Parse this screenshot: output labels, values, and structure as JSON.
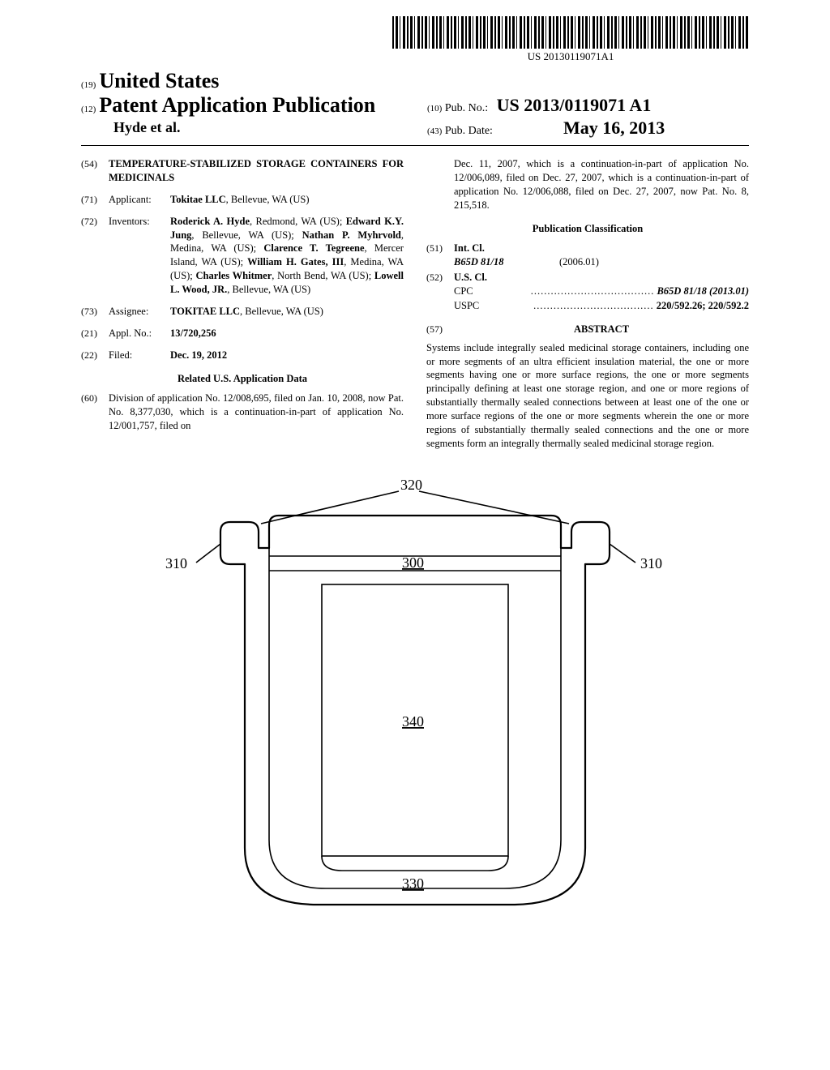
{
  "barcode_text": "US 20130119071A1",
  "header": {
    "code19": "(19)",
    "country": "United States",
    "code12": "(12)",
    "doc_type": "Patent Application Publication",
    "authors": "Hyde et al.",
    "code10": "(10)",
    "pub_no_label": "Pub. No.:",
    "pub_no": "US 2013/0119071 A1",
    "code43": "(43)",
    "pub_date_label": "Pub. Date:",
    "pub_date": "May 16, 2013"
  },
  "left": {
    "f54": {
      "code": "(54)",
      "title": "TEMPERATURE-STABILIZED STORAGE CONTAINERS FOR MEDICINALS"
    },
    "f71": {
      "code": "(71)",
      "label": "Applicant:",
      "body_bold": "Tokitae LLC",
      "body_rest": ", Bellevue, WA (US)"
    },
    "f72": {
      "code": "(72)",
      "label": "Inventors:",
      "body": "Roderick A. Hyde, Redmond, WA (US); Edward K.Y. Jung, Bellevue, WA (US); Nathan P. Myhrvold, Medina, WA (US); Clarence T. Tegreene, Mercer Island, WA (US); William H. Gates, III, Medina, WA (US); Charles Whitmer, North Bend, WA (US); Lowell L. Wood, JR., Bellevue, WA (US)",
      "bold_names": [
        "Roderick A. Hyde",
        "Edward K.Y. Jung",
        "Nathan P. Myhrvold",
        "Clarence T. Tegreene",
        "William H. Gates, III",
        "Charles Whitmer",
        "Lowell L. Wood, JR."
      ]
    },
    "f73": {
      "code": "(73)",
      "label": "Assignee:",
      "body_bold": "TOKITAE LLC",
      "body_rest": ", Bellevue, WA (US)"
    },
    "f21": {
      "code": "(21)",
      "label": "Appl. No.:",
      "body": "13/720,256"
    },
    "f22": {
      "code": "(22)",
      "label": "Filed:",
      "body": "Dec. 19, 2012"
    },
    "related_heading": "Related U.S. Application Data",
    "f60": {
      "code": "(60)",
      "body": "Division of application No. 12/008,695, filed on Jan. 10, 2008, now Pat. No. 8,377,030, which is a continuation-in-part of application No. 12/001,757, filed on"
    }
  },
  "right": {
    "cont": "Dec. 11, 2007, which is a continuation-in-part of application No. 12/006,089, filed on Dec. 27, 2007, which is a continuation-in-part of application No. 12/006,088, filed on Dec. 27, 2007, now Pat. No. 8, 215,518.",
    "class_heading": "Publication Classification",
    "f51": {
      "code": "(51)",
      "label": "Int. Cl.",
      "row_lab": "B65D 81/18",
      "row_val": "(2006.01)"
    },
    "f52": {
      "code": "(52)",
      "label": "U.S. Cl.",
      "cpc_lab": "CPC",
      "cpc_val": "B65D 81/18 (2013.01)",
      "uspc_lab": "USPC",
      "uspc_val": "220/592.26; 220/592.2"
    },
    "f57": {
      "code": "(57)",
      "heading": "ABSTRACT"
    },
    "abstract": "Systems include integrally sealed medicinal storage containers, including one or more segments of an ultra efficient insulation material, the one or more segments having one or more surface regions, the one or more segments principally defining at least one storage region, and one or more regions of substantially thermally sealed connections between at least one of the one or more surface regions of the one or more segments wherein the one or more regions of substantially thermally sealed connections and the one or more segments form an integrally thermally sealed medicinal storage region."
  },
  "figure": {
    "labels": {
      "l320": "320",
      "l310a": "310",
      "l310b": "310",
      "l300": "300",
      "l340": "340",
      "l330": "330"
    },
    "stroke": "#000000",
    "stroke_width_outer": 2.2,
    "stroke_width_inner": 1.6,
    "font_size": 18
  }
}
